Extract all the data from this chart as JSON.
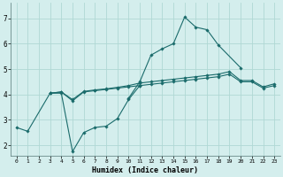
{
  "xlabel": "Humidex (Indice chaleur)",
  "bg_color": "#d4eeed",
  "line_color": "#1a6b6b",
  "grid_color": "#b0d8d4",
  "xlim": [
    -0.5,
    23.5
  ],
  "ylim": [
    1.6,
    7.6
  ],
  "yticks": [
    2,
    3,
    4,
    5,
    6,
    7
  ],
  "xticks": [
    0,
    1,
    2,
    3,
    4,
    5,
    6,
    7,
    8,
    9,
    10,
    11,
    12,
    13,
    14,
    15,
    16,
    17,
    18,
    19,
    20,
    21,
    22,
    23
  ],
  "series": [
    {
      "x": [
        0,
        1,
        3,
        4,
        5,
        6,
        7,
        8,
        9,
        10,
        11
      ],
      "y": [
        2.7,
        2.55,
        4.05,
        4.05,
        1.75,
        2.5,
        2.7,
        2.75,
        3.05,
        3.8,
        4.35
      ]
    },
    {
      "x": [
        3,
        4,
        5,
        6,
        7,
        8,
        9,
        10,
        11,
        12,
        13,
        14,
        15,
        16,
        17,
        18,
        19,
        20,
        21,
        22,
        23
      ],
      "y": [
        4.05,
        4.1,
        3.75,
        4.1,
        4.15,
        4.2,
        4.25,
        4.3,
        4.35,
        4.4,
        4.45,
        4.5,
        4.55,
        4.6,
        4.65,
        4.7,
        4.8,
        4.5,
        4.5,
        4.25,
        4.35
      ]
    },
    {
      "x": [
        3,
        4,
        5,
        6,
        7,
        8,
        9,
        10,
        11,
        12,
        13,
        14,
        15,
        16,
        17,
        18,
        19,
        20,
        21,
        22,
        23
      ],
      "y": [
        4.05,
        4.1,
        3.8,
        4.12,
        4.18,
        4.22,
        4.28,
        4.35,
        4.45,
        4.5,
        4.55,
        4.6,
        4.65,
        4.7,
        4.75,
        4.8,
        4.9,
        4.55,
        4.55,
        4.3,
        4.42
      ]
    },
    {
      "x": [
        10,
        11,
        12,
        13,
        14,
        15,
        16,
        17,
        18,
        20
      ],
      "y": [
        3.85,
        4.5,
        5.55,
        5.8,
        6.0,
        7.05,
        6.65,
        6.55,
        5.95,
        5.05
      ]
    }
  ]
}
